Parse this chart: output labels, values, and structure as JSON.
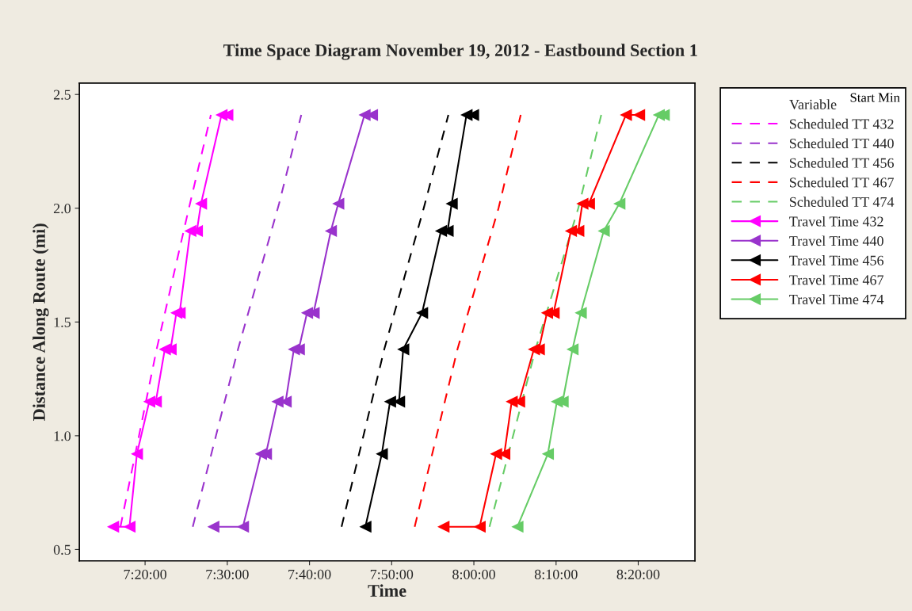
{
  "chart_data": {
    "type": "line",
    "title": "Time Space Diagram November 19, 2012 - Eastbound Section 1",
    "xlabel": "Time",
    "ylabel": "Distance Along Route (mi)",
    "legend_title": "Variable",
    "annotations": [
      "Start Min"
    ],
    "xlim": [
      7.2,
      8.4483
    ],
    "xticks": [
      {
        "value": 7.3333,
        "label": "7:20:00"
      },
      {
        "value": 7.5,
        "label": "7:30:00"
      },
      {
        "value": 7.6667,
        "label": "7:40:00"
      },
      {
        "value": 7.8333,
        "label": "7:50:00"
      },
      {
        "value": 8.0,
        "label": "8:00:00"
      },
      {
        "value": 8.1667,
        "label": "8:10:00"
      },
      {
        "value": 8.3333,
        "label": "8:20:00"
      }
    ],
    "ylim": [
      0.45,
      2.55
    ],
    "yticks": [
      0.5,
      {
        "value": 1,
        "label": "1.0"
      },
      1.5,
      {
        "value": 2,
        "label": "2.0"
      },
      2.5
    ],
    "grid": false,
    "legend": "right",
    "series": [
      {
        "name": "Scheduled TT 432",
        "color": "#ff00ff",
        "line_style": "dashed",
        "marker": "none",
        "x": [
          7.2833,
          7.3567,
          7.42,
          7.4667
        ],
        "values": [
          0.6,
          1.38,
          1.98,
          2.41
        ]
      },
      {
        "name": "Scheduled TT 440",
        "color": "#9933cc",
        "line_style": "dashed",
        "marker": "none",
        "x": [
          7.43,
          7.5217,
          7.605,
          7.65
        ],
        "values": [
          0.6,
          1.38,
          2.02,
          2.41
        ]
      },
      {
        "name": "Scheduled TT 456",
        "color": "#000000",
        "line_style": "dashed",
        "marker": "none",
        "x": [
          7.7317,
          7.8183,
          7.8983,
          7.9483
        ],
        "values": [
          0.6,
          1.38,
          2.0,
          2.41
        ]
      },
      {
        "name": "Scheduled TT 467",
        "color": "#ff0000",
        "line_style": "dashed",
        "marker": "none",
        "x": [
          7.88,
          7.9667,
          8.05,
          8.095
        ],
        "values": [
          0.6,
          1.38,
          2.0,
          2.41
        ]
      },
      {
        "name": "Scheduled TT 474",
        "color": "#66cc66",
        "line_style": "dashed",
        "marker": "none",
        "x": [
          8.0317,
          8.125,
          8.2117,
          8.2583
        ],
        "values": [
          0.6,
          1.38,
          2.0,
          2.41
        ]
      },
      {
        "name": "Travel Time 432",
        "color": "#ff00ff",
        "line_style": "solid",
        "marker": "triangle",
        "x": [
          7.2683,
          7.3017,
          7.3167,
          7.3417,
          7.355,
          7.3733,
          7.385,
          7.3967,
          7.4033,
          7.425,
          7.4383,
          7.4467,
          7.4883,
          7.5
        ],
        "values": [
          0.6,
          0.6,
          0.92,
          1.15,
          1.15,
          1.38,
          1.38,
          1.54,
          1.54,
          1.9,
          1.9,
          2.02,
          2.41,
          2.41
        ]
      },
      {
        "name": "Travel Time 440",
        "color": "#9933cc",
        "line_style": "solid",
        "marker": "triangle",
        "x": [
          7.4717,
          7.5317,
          7.5683,
          7.5783,
          7.6017,
          7.6183,
          7.635,
          7.645,
          7.6617,
          7.675,
          7.71,
          7.725,
          7.7783,
          7.7933
        ],
        "values": [
          0.6,
          0.6,
          0.92,
          0.92,
          1.15,
          1.15,
          1.38,
          1.38,
          1.54,
          1.54,
          1.9,
          2.02,
          2.41,
          2.41
        ]
      },
      {
        "name": "Travel Time 456",
        "color": "#000000",
        "line_style": "solid",
        "marker": "triangle",
        "x": [
          7.78,
          7.8133,
          7.83,
          7.8483,
          7.8567,
          7.895,
          7.9333,
          7.9467,
          7.955,
          7.985,
          7.9983
        ],
        "values": [
          0.6,
          0.92,
          1.15,
          1.15,
          1.38,
          1.54,
          1.9,
          1.9,
          2.02,
          2.41,
          2.41
        ]
      },
      {
        "name": "Travel Time 467",
        "color": "#ff0000",
        "line_style": "solid",
        "marker": "triangle",
        "x": [
          7.9383,
          8.0117,
          8.045,
          8.0617,
          8.0767,
          8.0917,
          8.1217,
          8.1317,
          8.1483,
          8.1617,
          8.1967,
          8.2117,
          8.22,
          8.2333,
          8.3083,
          8.335
        ],
        "values": [
          0.6,
          0.6,
          0.92,
          0.92,
          1.15,
          1.15,
          1.38,
          1.38,
          1.54,
          1.54,
          1.9,
          1.9,
          2.02,
          2.02,
          2.41,
          2.41
        ]
      },
      {
        "name": "Travel Time 474",
        "color": "#66cc66",
        "line_style": "solid",
        "marker": "triangle",
        "x": [
          8.0883,
          8.15,
          8.1683,
          8.18,
          8.2,
          8.2167,
          8.2633,
          8.295,
          8.375,
          8.385
        ],
        "values": [
          0.6,
          0.92,
          1.15,
          1.15,
          1.38,
          1.54,
          1.9,
          2.02,
          2.41,
          2.41
        ]
      }
    ]
  }
}
